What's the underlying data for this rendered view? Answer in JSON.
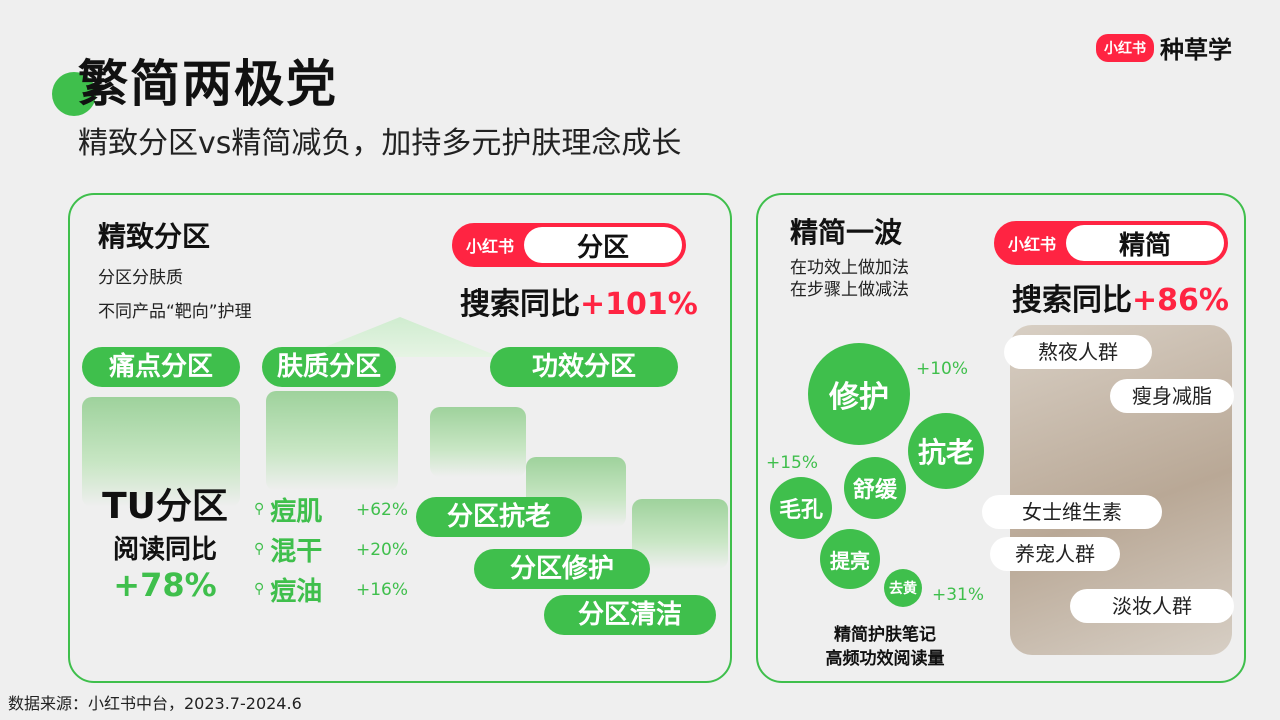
{
  "header": {
    "title": "繁简两极党",
    "subtitle": "精致分区vs精简减负，加持多元护肤理念成长",
    "brand_logo": "小红书",
    "brand_text": "种草学"
  },
  "left": {
    "title": "精致分区",
    "desc1": "分区分肤质",
    "desc2": "不同产品“靶向”护理",
    "pill_logo": "小红书",
    "pill_label": "分区",
    "stat_label": "搜索同比",
    "stat_value": "+101%",
    "tags": [
      "痛点分区",
      "肤质分区",
      "功效分区"
    ],
    "tu_title": "TU分区",
    "tu_sub": "阅读同比",
    "tu_value": "+78%",
    "keywords": [
      {
        "word": "痘肌",
        "pct": "+62%"
      },
      {
        "word": "混干",
        "pct": "+20%"
      },
      {
        "word": "痘油",
        "pct": "+16%"
      }
    ],
    "effect_tags": [
      "分区抗老",
      "分区修护",
      "分区清洁"
    ]
  },
  "right": {
    "title": "精简一波",
    "desc1": "在功效上做加法",
    "desc2": "在步骤上做减法",
    "pill_logo": "小红书",
    "pill_label": "精简",
    "stat_label": "搜索同比",
    "stat_value": "+86%",
    "bubbles": {
      "b1": "修护",
      "b1_pct": "+10%",
      "b2": "抗老",
      "b3": "舒缓",
      "b4": "毛孔",
      "b4_pct": "+15%",
      "b5": "提亮",
      "b6": "去黄",
      "b6_pct": "+31%"
    },
    "bubble_caption1": "精简护肤笔记",
    "bubble_caption2": "高频功效阅读量",
    "crowds": [
      "熬夜人群",
      "瘦身减脂",
      "女士维生素",
      "养宠人群",
      "淡妆人群"
    ]
  },
  "footer": "数据来源：小红书中台，2023.7-2024.6"
}
